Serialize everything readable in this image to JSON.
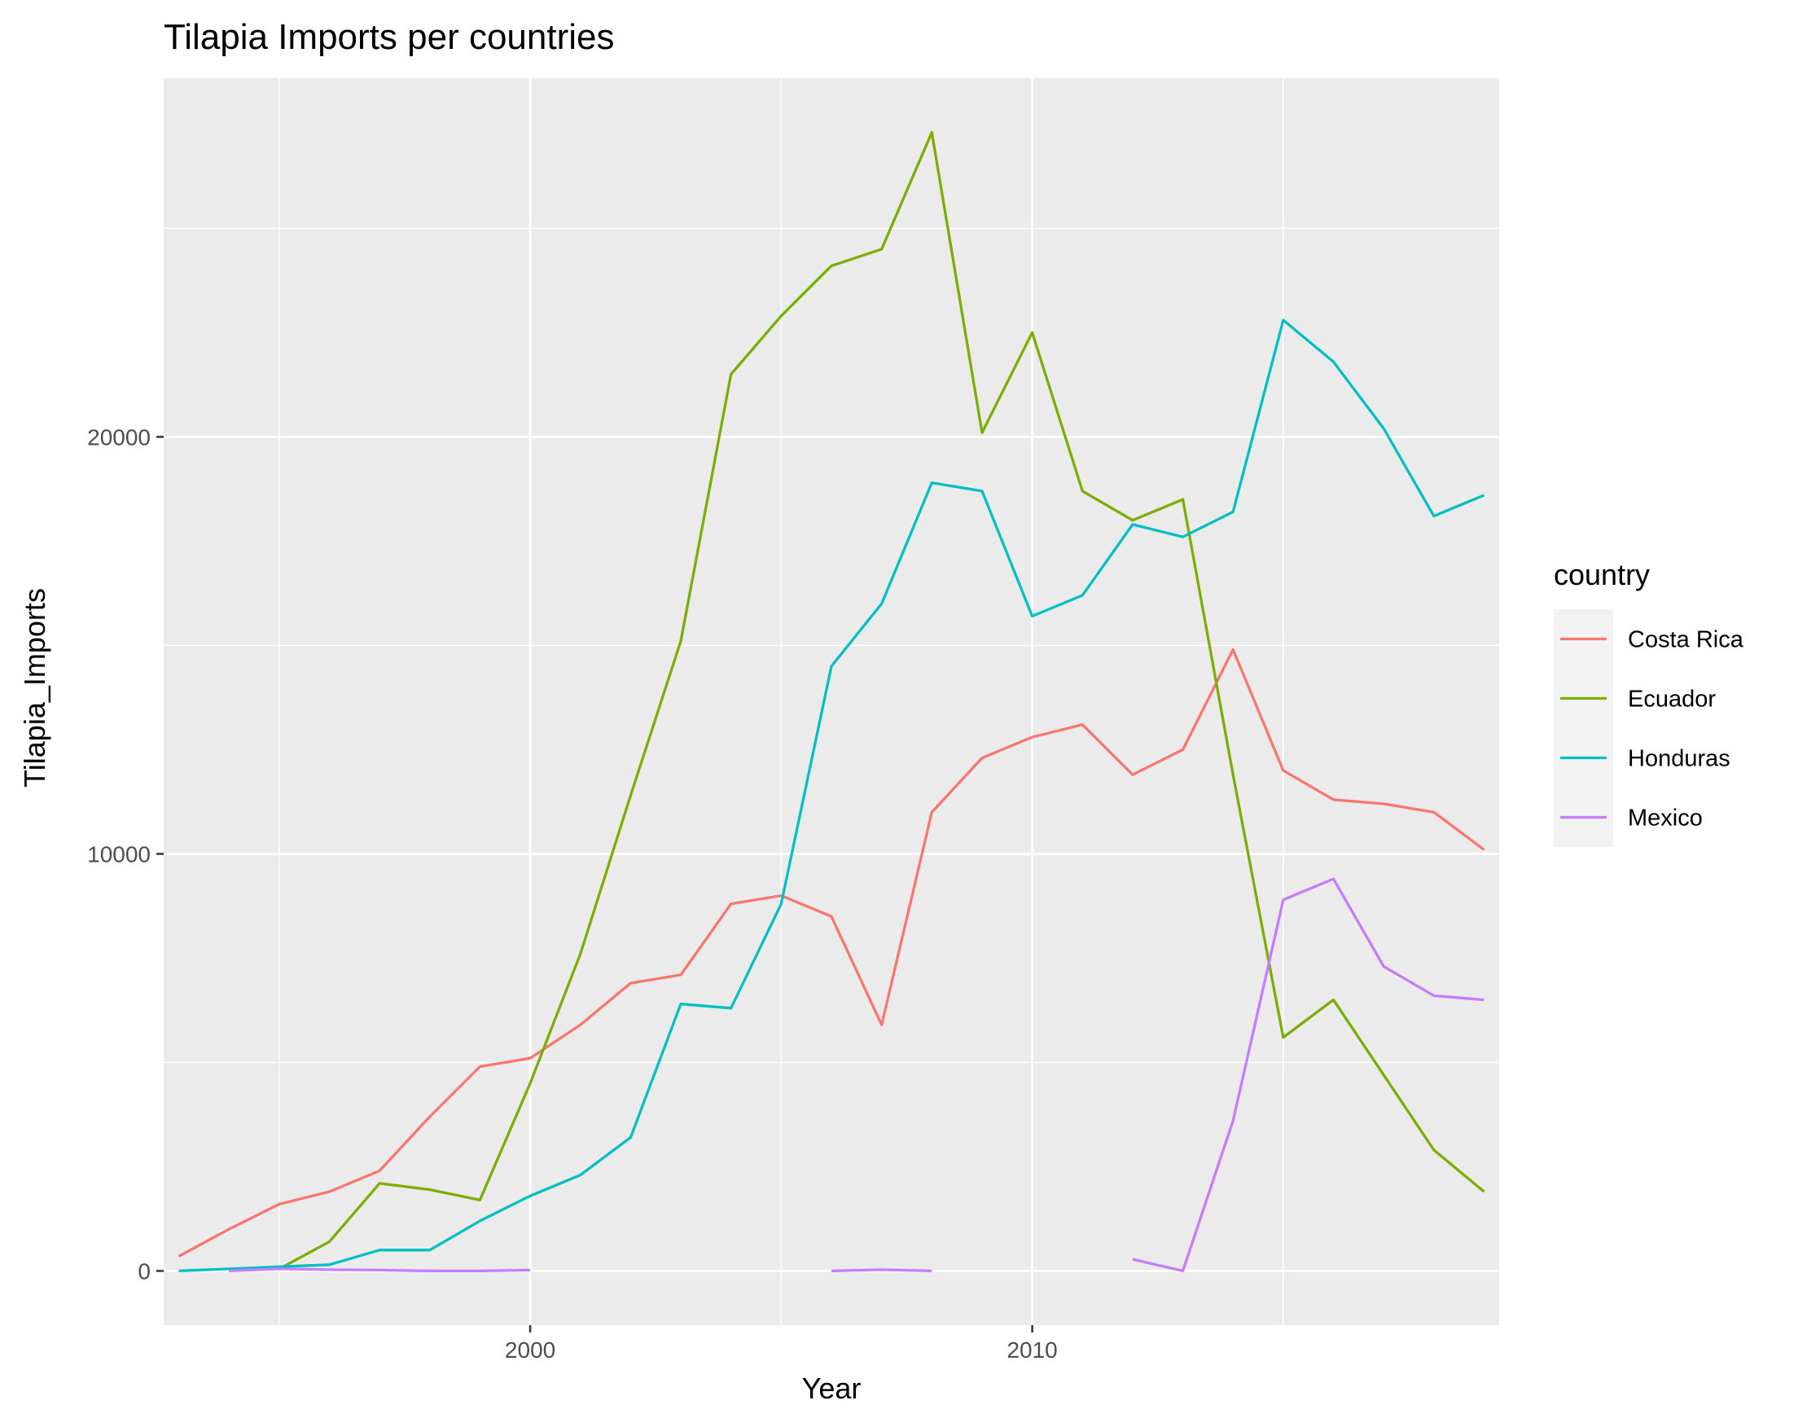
{
  "chart_data": {
    "type": "line",
    "title": "Tilapia Imports per countries",
    "xlabel": "Year",
    "ylabel": "Tilapia_Imports",
    "xlim": [
      1992.7,
      2019.3
    ],
    "ylim": [
      -1300,
      28600
    ],
    "x_ticks": [
      {
        "value": 2000,
        "label": "2000"
      },
      {
        "value": 2010,
        "label": "2010"
      }
    ],
    "x_minor": [
      1995,
      2005,
      2015
    ],
    "y_ticks": [
      {
        "value": 0,
        "label": "0"
      },
      {
        "value": 10000,
        "label": "10000"
      },
      {
        "value": 20000,
        "label": "20000"
      }
    ],
    "y_minor": [
      5000,
      15000,
      25000
    ],
    "grid": true,
    "legend": {
      "title": "country",
      "position": "right"
    },
    "series": [
      {
        "name": "Costa Rica",
        "color": "#F8766D",
        "points": [
          [
            1993,
            350
          ],
          [
            1994,
            1000
          ],
          [
            1995,
            1600
          ],
          [
            1996,
            1900
          ],
          [
            1997,
            2400
          ],
          [
            1998,
            3700
          ],
          [
            1999,
            4900
          ],
          [
            2000,
            5100
          ],
          [
            2001,
            5900
          ],
          [
            2002,
            6900
          ],
          [
            2003,
            7100
          ],
          [
            2004,
            8800
          ],
          [
            2005,
            9000
          ],
          [
            2006,
            8500
          ],
          [
            2007,
            5900
          ],
          [
            2008,
            11000
          ],
          [
            2009,
            12300
          ],
          [
            2010,
            12800
          ],
          [
            2011,
            13100
          ],
          [
            2012,
            11900
          ],
          [
            2013,
            12500
          ],
          [
            2014,
            14900
          ],
          [
            2015,
            12000
          ],
          [
            2016,
            11300
          ],
          [
            2017,
            11200
          ],
          [
            2018,
            11000
          ],
          [
            2019,
            10100
          ]
        ]
      },
      {
        "name": "Ecuador",
        "color": "#7CAE00",
        "points": [
          [
            1995,
            50
          ],
          [
            1996,
            700
          ],
          [
            1997,
            2100
          ],
          [
            1998,
            1950
          ],
          [
            1999,
            1700
          ],
          [
            2000,
            4500
          ],
          [
            2001,
            7600
          ],
          [
            2002,
            11400
          ],
          [
            2003,
            15100
          ],
          [
            2004,
            21500
          ],
          [
            2005,
            22900
          ],
          [
            2006,
            24100
          ],
          [
            2007,
            24500
          ],
          [
            2008,
            27300
          ],
          [
            2009,
            20100
          ],
          [
            2010,
            22500
          ],
          [
            2011,
            18700
          ],
          [
            2012,
            18000
          ],
          [
            2013,
            18500
          ],
          [
            2014,
            11900
          ],
          [
            2015,
            5600
          ],
          [
            2016,
            6500
          ],
          [
            2017,
            4700
          ],
          [
            2018,
            2900
          ],
          [
            2019,
            1900
          ]
        ]
      },
      {
        "name": "Honduras",
        "color": "#00BFC4",
        "points": [
          [
            1993,
            0
          ],
          [
            1994,
            50
          ],
          [
            1995,
            100
          ],
          [
            1996,
            150
          ],
          [
            1997,
            500
          ],
          [
            1998,
            500
          ],
          [
            1999,
            1200
          ],
          [
            2000,
            1800
          ],
          [
            2001,
            2300
          ],
          [
            2002,
            3200
          ],
          [
            2003,
            6400
          ],
          [
            2004,
            6300
          ],
          [
            2005,
            8800
          ],
          [
            2006,
            14500
          ],
          [
            2007,
            16000
          ],
          [
            2008,
            18900
          ],
          [
            2009,
            18700
          ],
          [
            2010,
            15700
          ],
          [
            2011,
            16200
          ],
          [
            2012,
            17900
          ],
          [
            2013,
            17600
          ],
          [
            2014,
            18200
          ],
          [
            2015,
            22800
          ],
          [
            2016,
            21800
          ],
          [
            2017,
            20200
          ],
          [
            2018,
            18100
          ],
          [
            2019,
            18600
          ]
        ]
      },
      {
        "name": "Mexico",
        "color": "#C77CFF",
        "segments": [
          [
            [
              1994,
              0
            ],
            [
              1995,
              50
            ],
            [
              1996,
              30
            ],
            [
              1997,
              20
            ],
            [
              1998,
              0
            ],
            [
              1999,
              0
            ],
            [
              2000,
              20
            ]
          ],
          [
            [
              2006,
              0
            ],
            [
              2007,
              30
            ],
            [
              2008,
              0
            ]
          ],
          [
            [
              2012,
              280
            ],
            [
              2013,
              0
            ],
            [
              2014,
              3600
            ],
            [
              2015,
              8900
            ],
            [
              2016,
              9400
            ],
            [
              2017,
              7300
            ],
            [
              2018,
              6600
            ],
            [
              2019,
              6500
            ]
          ]
        ]
      }
    ]
  }
}
